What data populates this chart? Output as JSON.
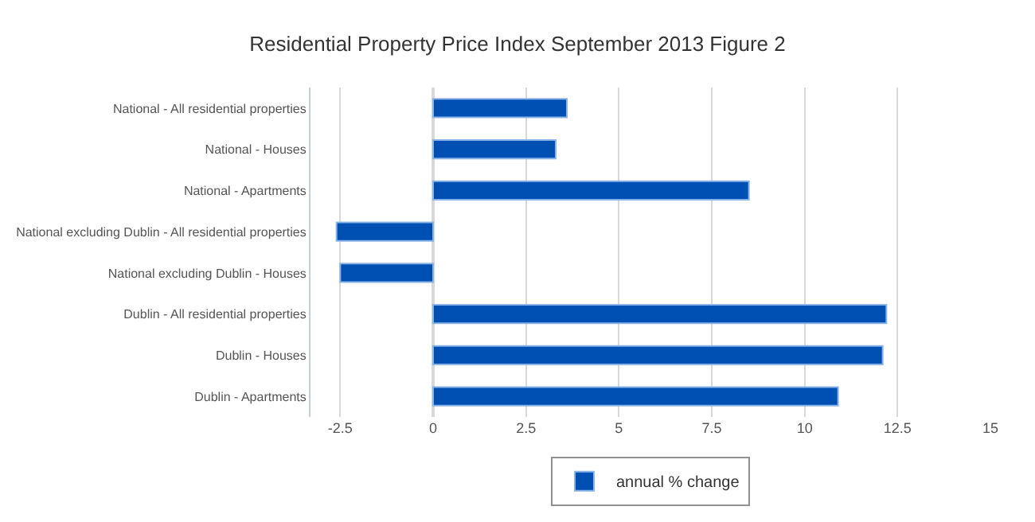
{
  "chart_data": {
    "type": "bar",
    "orientation": "horizontal",
    "title": "Residential Property Price Index September 2013 Figure 2",
    "categories": [
      "National - All residential properties",
      "National - Houses",
      "National - Apartments",
      "National excluding Dublin - All residential properties",
      "National excluding Dublin - Houses",
      "Dublin - All residential properties",
      "Dublin - Houses",
      "Dublin - Apartments"
    ],
    "series": [
      {
        "name": "annual % change",
        "color": "#0050b4",
        "values": [
          3.6,
          3.3,
          8.5,
          -2.6,
          -2.5,
          12.2,
          12.1,
          10.9
        ]
      }
    ],
    "xlim": [
      -3.3,
      15
    ],
    "xticks": [
      -2.5,
      0,
      2.5,
      5,
      7.5,
      10,
      12.5,
      15
    ],
    "grid": "x",
    "legend": "bottom"
  }
}
